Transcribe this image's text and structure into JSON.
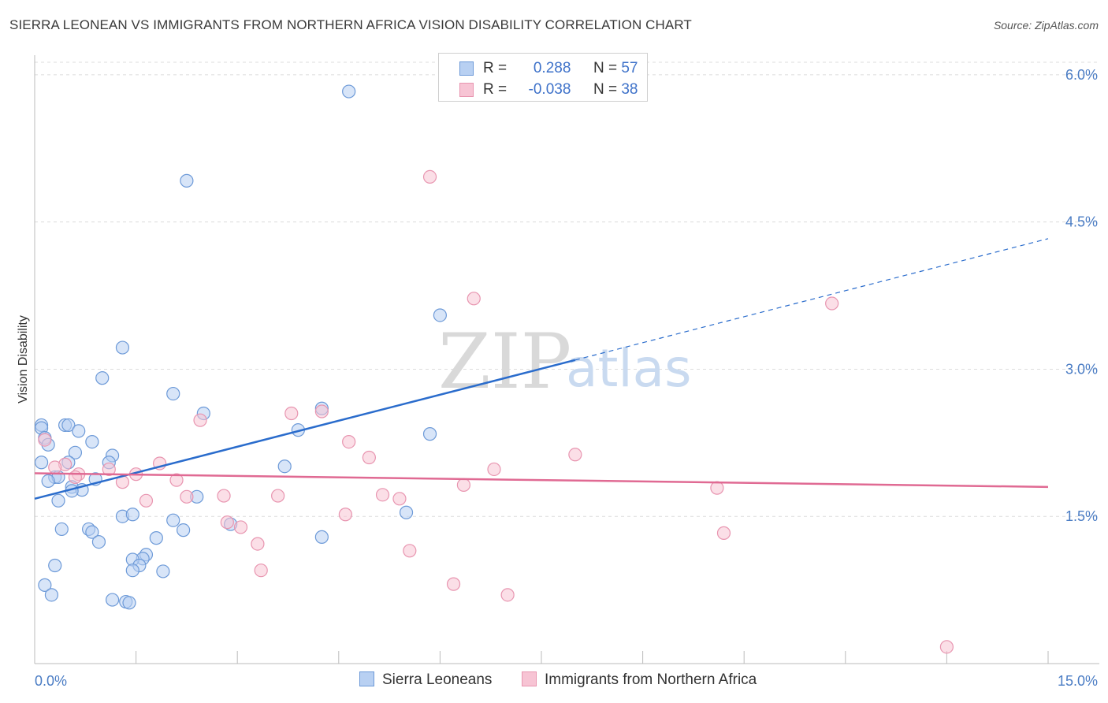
{
  "title": "SIERRA LEONEAN VS IMMIGRANTS FROM NORTHERN AFRICA VISION DISABILITY CORRELATION CHART",
  "source": "Source: ZipAtlas.com",
  "watermark": {
    "zip": "ZIP",
    "atlas": "atlas"
  },
  "colors": {
    "blue_fill": "#b8d0f2",
    "blue_stroke": "#6d9ad8",
    "blue_line": "#2a6ccc",
    "pink_fill": "#f7c4d4",
    "pink_stroke": "#e895b0",
    "pink_line": "#e06a93",
    "tick_text": "#4a7cc4",
    "grid": "#dcdcdc"
  },
  "legend": {
    "rows": [
      {
        "r_label": "R =",
        "r_value": "0.288",
        "n_label": "N =",
        "n_value": "57"
      },
      {
        "r_label": "R =",
        "r_value": "-0.038",
        "n_label": "N =",
        "n_value": "38"
      }
    ]
  },
  "chart_data": {
    "type": "scatter",
    "title": "SIERRA LEONEAN VS IMMIGRANTS FROM NORTHERN AFRICA VISION DISABILITY CORRELATION CHART",
    "xlabel": "",
    "ylabel": "Vision Disability",
    "xlim": [
      0,
      15
    ],
    "ylim": [
      0,
      6.2
    ],
    "x_tick_labels": [
      "0.0%",
      "15.0%"
    ],
    "y_ticks": [
      1.5,
      3.0,
      4.5,
      6.0
    ],
    "y_tick_labels": [
      "1.5%",
      "3.0%",
      "4.5%",
      "6.0%"
    ],
    "series": [
      {
        "name": "Sierra Leoneans",
        "r": 0.288,
        "n": 57,
        "trend": {
          "x0": 0.0,
          "y0": 1.68,
          "x_solid_end": 8.0,
          "x1": 15.0,
          "y1": 4.33
        },
        "points": [
          [
            4.65,
            5.83
          ],
          [
            2.25,
            4.92
          ],
          [
            6.0,
            3.55
          ],
          [
            1.3,
            3.22
          ],
          [
            1.0,
            2.91
          ],
          [
            2.05,
            2.75
          ],
          [
            2.5,
            2.55
          ],
          [
            4.25,
            2.6
          ],
          [
            0.1,
            2.43
          ],
          [
            0.45,
            2.43
          ],
          [
            0.5,
            2.43
          ],
          [
            0.1,
            2.4
          ],
          [
            0.65,
            2.37
          ],
          [
            3.9,
            2.38
          ],
          [
            5.85,
            2.34
          ],
          [
            0.15,
            2.3
          ],
          [
            0.85,
            2.26
          ],
          [
            0.2,
            2.23
          ],
          [
            0.6,
            2.15
          ],
          [
            1.15,
            2.12
          ],
          [
            0.1,
            2.05
          ],
          [
            0.5,
            2.05
          ],
          [
            1.1,
            2.05
          ],
          [
            3.7,
            2.01
          ],
          [
            0.3,
            1.9
          ],
          [
            0.35,
            1.9
          ],
          [
            0.2,
            1.86
          ],
          [
            0.9,
            1.88
          ],
          [
            0.55,
            1.8
          ],
          [
            0.7,
            1.77
          ],
          [
            0.55,
            1.76
          ],
          [
            2.4,
            1.7
          ],
          [
            0.35,
            1.66
          ],
          [
            1.3,
            1.5
          ],
          [
            1.45,
            1.52
          ],
          [
            2.05,
            1.46
          ],
          [
            5.5,
            1.54
          ],
          [
            2.9,
            1.42
          ],
          [
            0.4,
            1.37
          ],
          [
            0.8,
            1.37
          ],
          [
            0.85,
            1.34
          ],
          [
            2.2,
            1.36
          ],
          [
            4.25,
            1.29
          ],
          [
            1.8,
            1.28
          ],
          [
            0.95,
            1.24
          ],
          [
            1.65,
            1.11
          ],
          [
            1.6,
            1.07
          ],
          [
            1.45,
            1.06
          ],
          [
            1.55,
            1.0
          ],
          [
            1.45,
            0.95
          ],
          [
            1.9,
            0.94
          ],
          [
            1.15,
            0.65
          ],
          [
            1.35,
            0.63
          ],
          [
            1.4,
            0.62
          ],
          [
            0.15,
            0.8
          ],
          [
            0.3,
            1.0
          ],
          [
            0.25,
            0.7
          ]
        ]
      },
      {
        "name": "Immigrants from Northern Africa",
        "r": -0.038,
        "n": 38,
        "trend": {
          "x0": 0.0,
          "y0": 1.94,
          "x1": 15.0,
          "y1": 1.8
        },
        "points": [
          [
            5.85,
            4.96
          ],
          [
            6.5,
            3.72
          ],
          [
            11.8,
            3.67
          ],
          [
            3.8,
            2.55
          ],
          [
            4.25,
            2.57
          ],
          [
            2.45,
            2.48
          ],
          [
            0.15,
            2.28
          ],
          [
            4.65,
            2.26
          ],
          [
            8.0,
            2.13
          ],
          [
            4.95,
            2.1
          ],
          [
            1.85,
            2.04
          ],
          [
            0.45,
            2.03
          ],
          [
            0.3,
            2.0
          ],
          [
            6.8,
            1.98
          ],
          [
            1.1,
            1.98
          ],
          [
            1.5,
            1.93
          ],
          [
            0.65,
            1.93
          ],
          [
            2.1,
            1.87
          ],
          [
            1.3,
            1.85
          ],
          [
            6.35,
            1.82
          ],
          [
            10.1,
            1.79
          ],
          [
            5.15,
            1.72
          ],
          [
            2.8,
            1.71
          ],
          [
            3.6,
            1.71
          ],
          [
            2.25,
            1.7
          ],
          [
            5.4,
            1.68
          ],
          [
            1.65,
            1.66
          ],
          [
            4.6,
            1.52
          ],
          [
            2.85,
            1.44
          ],
          [
            3.05,
            1.39
          ],
          [
            10.2,
            1.33
          ],
          [
            3.3,
            1.22
          ],
          [
            5.55,
            1.15
          ],
          [
            3.35,
            0.95
          ],
          [
            6.2,
            0.81
          ],
          [
            7.0,
            0.7
          ],
          [
            13.5,
            0.17
          ],
          [
            0.6,
            1.9
          ]
        ]
      }
    ],
    "legend_position": "top-center"
  }
}
